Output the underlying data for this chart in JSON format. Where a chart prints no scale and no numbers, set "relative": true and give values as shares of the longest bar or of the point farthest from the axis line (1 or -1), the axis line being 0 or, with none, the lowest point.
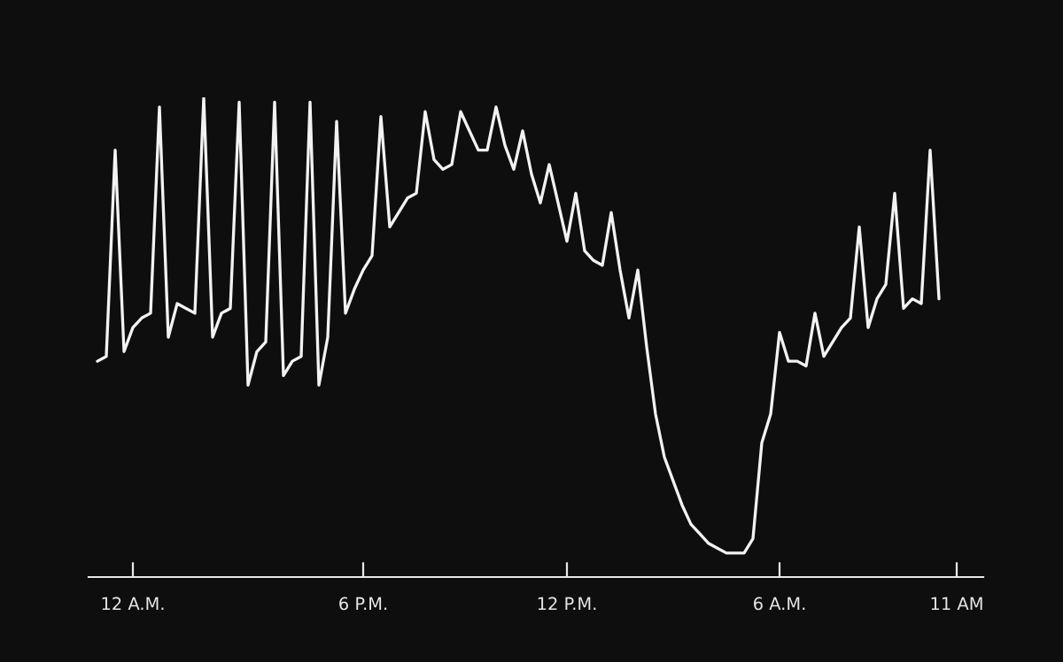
{
  "chart_data": {
    "type": "line",
    "relative": true,
    "color": "#f2f2f2",
    "grid": false,
    "legend": false,
    "tick_labels": "x",
    "categories": [
      null,
      null,
      null,
      null,
      null,
      "12 A.M.",
      null,
      null,
      null,
      null,
      null,
      null,
      null,
      null,
      null,
      null,
      null,
      null,
      null,
      null,
      null,
      null,
      null,
      null,
      null,
      null,
      null,
      null,
      null,
      null,
      null,
      "6 P.M.",
      null,
      null,
      null,
      null,
      null,
      null,
      null,
      null,
      null,
      null,
      null,
      null,
      null,
      null,
      null,
      null,
      null,
      null,
      null,
      null,
      null,
      null,
      "12 P.M.",
      null,
      null,
      null,
      null,
      null,
      null,
      null,
      null,
      null,
      null,
      null,
      null,
      null,
      null,
      null,
      null,
      null,
      null,
      null,
      null,
      null,
      null,
      null,
      "6 A.M.",
      null,
      null,
      null,
      null,
      null,
      null,
      null,
      null,
      null,
      null,
      null,
      null,
      null,
      null,
      null,
      null,
      null,
      null,
      null,
      "11 AM",
      null,
      null,
      null
    ],
    "values": [
      null,
      0.45,
      0.46,
      0.89,
      0.47,
      0.52,
      0.54,
      0.55,
      0.98,
      0.5,
      0.57,
      0.56,
      0.55,
      1.0,
      0.5,
      0.55,
      0.56,
      0.99,
      0.4,
      0.47,
      0.49,
      0.99,
      0.42,
      0.45,
      0.46,
      0.99,
      0.4,
      0.5,
      0.95,
      0.55,
      0.6,
      0.64,
      0.67,
      0.96,
      0.73,
      0.76,
      0.79,
      0.8,
      0.97,
      0.87,
      0.85,
      0.86,
      0.97,
      0.93,
      0.89,
      0.89,
      0.98,
      0.9,
      0.85,
      0.93,
      0.84,
      0.78,
      0.86,
      0.78,
      0.7,
      0.8,
      0.68,
      0.66,
      0.65,
      0.76,
      0.64,
      0.54,
      0.64,
      0.48,
      0.34,
      0.25,
      0.2,
      0.15,
      0.11,
      0.09,
      0.07,
      0.06,
      0.05,
      0.05,
      0.05,
      0.08,
      0.28,
      0.34,
      0.51,
      0.45,
      0.45,
      0.44,
      0.55,
      0.46,
      0.49,
      0.52,
      0.54,
      0.73,
      0.52,
      0.58,
      0.61,
      0.8,
      0.56,
      0.58,
      0.57,
      0.89,
      0.58,
      null,
      null,
      null,
      null,
      null
    ]
  }
}
